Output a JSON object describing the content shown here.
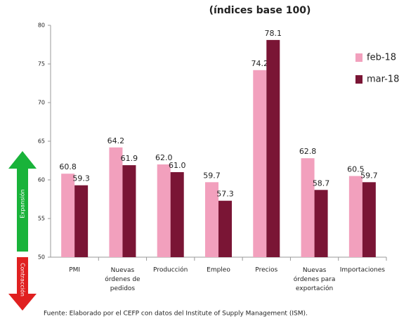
{
  "chart_data": {
    "type": "bar",
    "title": "(índices base 100)",
    "categories": [
      "PMI",
      "Nuevas\nórdenes de\npedidos",
      "Producción",
      "Empleo",
      "Precios",
      "Nuevas\nórdenes para\nexportación",
      "Importaciones"
    ],
    "series": [
      {
        "name": "feb-18",
        "color": "#f2a0bd",
        "values": [
          60.8,
          64.2,
          62.0,
          59.7,
          74.2,
          62.8,
          60.5
        ],
        "value_labels": [
          "60.8",
          "64.2",
          "62.0",
          "59.7",
          "74.2",
          "62.8",
          "60.5"
        ]
      },
      {
        "name": "mar-18",
        "color": "#7a1535",
        "values": [
          59.3,
          61.9,
          61.0,
          57.3,
          78.1,
          58.7,
          59.7
        ],
        "value_labels": [
          "59.3",
          "61.9",
          "61.0",
          "57.3",
          "78.1",
          "58.7",
          "59.7"
        ]
      }
    ],
    "ylim": [
      50,
      80
    ],
    "yticks": [
      50,
      55,
      60,
      65,
      70,
      75,
      80
    ],
    "grid": false,
    "legend": "right",
    "annotations": {
      "up": "Expansión",
      "down": "Contracción"
    },
    "source": "Fuente: Elaborado por el CEFP con datos del Institute of Supply Management (ISM)."
  }
}
